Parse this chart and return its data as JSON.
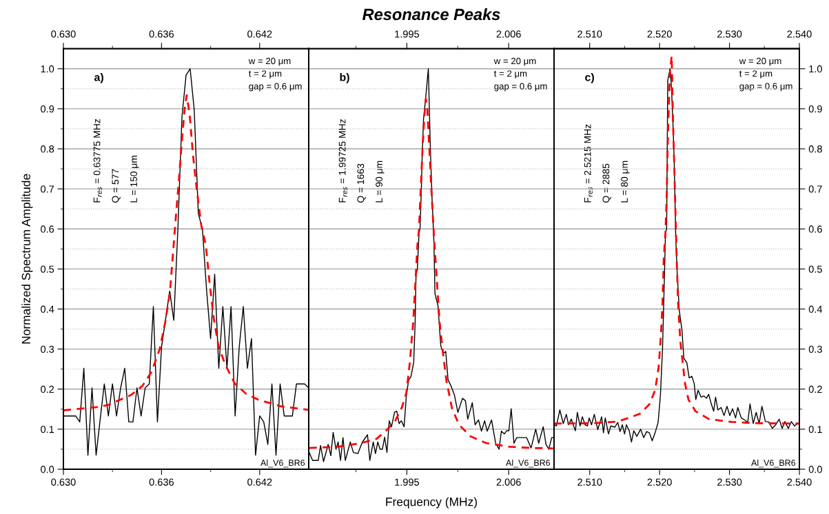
{
  "chart_data": [
    {
      "type": "line",
      "ylabel": "Normalized Spectrum Amplitude",
      "xlim": [
        0.63,
        0.645
      ],
      "xticks": [
        {
          "value": 0.63,
          "label": "0.630"
        },
        {
          "value": 0.633,
          "label": null
        },
        0.636,
        {
          "value": 0.639,
          "label": null
        },
        0.642
      ],
      "x2lim": [
        0.63,
        0.645
      ],
      "x2ticks": [
        {
          "value": 0.63,
          "label": "0.630"
        },
        {
          "value": 0.633,
          "label": null
        },
        0.636,
        {
          "value": 0.639,
          "label": null
        },
        0.642
      ],
      "ylim": [
        0,
        1.05
      ],
      "yticks": [
        {
          "value": 0,
          "label": "0.0"
        },
        {
          "value": 0.05,
          "label": null
        },
        0.1,
        {
          "value": 0.15,
          "label": null
        },
        0.2,
        {
          "value": 0.25,
          "label": null
        },
        0.3,
        {
          "value": 0.35,
          "label": null
        },
        0.4,
        {
          "value": 0.45,
          "label": null
        },
        0.5,
        {
          "value": 0.55,
          "label": null
        },
        0.6,
        {
          "value": 0.65,
          "label": null
        },
        0.7,
        {
          "value": 0.75,
          "label": null
        },
        0.8,
        {
          "value": 0.85,
          "label": null
        },
        0.9,
        {
          "value": 0.95,
          "label": null
        },
        {
          "value": 1,
          "label": "1.0"
        }
      ],
      "grid": "y",
      "annotations": [
        "a)",
        "F$_{res}$ = 0.63775 MHz",
        "Q = 577",
        "L = 150 μm",
        "w = 20 μm",
        "t = 2 μm",
        "gap = 0.6 μm",
        "Al_V6_BR6"
      ],
      "series": [
        {
          "color": "#000000",
          "line_style": "solid",
          "x": [
            0.63,
            0.63025,
            0.6305,
            0.63075,
            0.631,
            0.63125,
            0.6315,
            0.63175,
            0.632,
            0.63225,
            0.6325,
            0.63275,
            0.633,
            0.63325,
            0.6335,
            0.63375,
            0.634,
            0.63425,
            0.6345,
            0.63475,
            0.635,
            0.63525,
            0.6355,
            0.63575,
            0.636,
            0.63625,
            0.6365,
            0.63675,
            0.637,
            0.63725,
            0.6375,
            0.63775,
            0.638,
            0.63825,
            0.6385,
            0.63875,
            0.639,
            0.63925,
            0.6395,
            0.63975,
            0.64,
            0.64025,
            0.6405,
            0.64075,
            0.641,
            0.64125,
            0.6415,
            0.64175,
            0.642,
            0.64225,
            0.6425,
            0.64275,
            0.643,
            0.64325,
            0.6435,
            0.64375,
            0.644,
            0.64425,
            0.6445,
            0.64475,
            0.645
          ],
          "values": [
            0.133,
            0.133,
            0.133,
            0.133,
            0.118,
            0.252,
            0.035,
            0.203,
            0.035,
            0.125,
            0.213,
            0.133,
            0.213,
            0.133,
            0.203,
            0.252,
            0.118,
            0.118,
            0.203,
            0.133,
            0.203,
            0.213,
            0.406,
            0.118,
            0.305,
            0.375,
            0.445,
            0.372,
            0.6,
            0.88,
            0.984,
            1.0,
            0.897,
            0.638,
            0.6,
            0.45,
            0.326,
            0.487,
            0.252,
            0.406,
            0.252,
            0.406,
            0.133,
            0.305,
            0.406,
            0.252,
            0.326,
            0.035,
            0.133,
            0.118,
            0.062,
            0.213,
            0.035,
            0.213,
            0.133,
            0.133,
            0.133,
            0.213,
            0.213,
            0.213,
            0.203
          ]
        },
        {
          "color": "#ff0000",
          "line_style": "dashed",
          "x": [
            0.63,
            0.632,
            0.63271,
            0.63412,
            0.63483,
            0.63539,
            0.63589,
            0.63624,
            0.63652,
            0.63674,
            0.63688,
            0.63709,
            0.63726,
            0.63741,
            0.63754,
            0.63772,
            0.63793,
            0.63815,
            0.63843,
            0.63871,
            0.63892,
            0.6392,
            0.63949,
            0.63991,
            0.64048,
            0.64118,
            0.64189,
            0.6433,
            0.645
          ],
          "values": [
            0.147,
            0.155,
            0.16,
            0.185,
            0.208,
            0.243,
            0.3,
            0.37,
            0.444,
            0.559,
            0.632,
            0.736,
            0.828,
            0.897,
            0.934,
            0.885,
            0.782,
            0.7,
            0.609,
            0.559,
            0.472,
            0.375,
            0.306,
            0.26,
            0.214,
            0.188,
            0.174,
            0.157,
            0.148
          ]
        }
      ]
    },
    {
      "type": "line",
      "title": "Resonance Peaks",
      "xlabel": "Frequency (MHz)",
      "xlim": [
        1.9844,
        2.0109
      ],
      "xticks": [
        {
          "value": 1.9895,
          "label": null
        },
        1.995,
        {
          "value": 2.0005,
          "label": null
        },
        2.006
      ],
      "x2lim": [
        1.9844,
        2.0109
      ],
      "x2ticks": [
        {
          "value": 1.9895,
          "label": null
        },
        1.995,
        {
          "value": 2.0005,
          "label": null
        },
        2.006
      ],
      "ylim": [
        0,
        1.05
      ],
      "yticks": [
        0,
        {
          "value": 0.05,
          "label": null
        },
        0.1,
        {
          "value": 0.15,
          "label": null
        },
        0.2,
        {
          "value": 0.25,
          "label": null
        },
        0.3,
        {
          "value": 0.35,
          "label": null
        },
        0.4,
        {
          "value": 0.45,
          "label": null
        },
        0.5,
        {
          "value": 0.55,
          "label": null
        },
        0.6,
        {
          "value": 0.65,
          "label": null
        },
        0.7,
        {
          "value": 0.75,
          "label": null
        },
        0.8,
        {
          "value": 0.85,
          "label": null
        },
        0.9,
        {
          "value": 0.95,
          "label": null
        },
        1
      ],
      "tick_labels": "x",
      "grid": "y",
      "annotations": [
        "b)",
        "F$_{res}$ = 1.99725 MHz",
        "Q = 1663",
        "L = 90 μm",
        "w = 20 μm",
        "t = 2 μm",
        "gap = 0.6 μm",
        "Al_V6_BR6"
      ],
      "series": [
        {
          "color": "#000000",
          "line_style": "solid",
          "x": [
            1.98445,
            1.98482,
            1.98543,
            1.98568,
            1.986,
            1.9865,
            1.98679,
            1.98704,
            1.98734,
            1.98758,
            1.98783,
            1.9881,
            1.98835,
            1.98889,
            1.98922,
            1.98971,
            1.9902,
            1.99075,
            1.991,
            1.99137,
            1.99161,
            1.99186,
            1.99211,
            1.99236,
            1.9926,
            1.99285,
            1.9931,
            1.99334,
            1.99367,
            1.99391,
            1.99416,
            1.99441,
            1.9947,
            1.99495,
            1.9952,
            1.99544,
            1.99574,
            1.99589,
            1.99599,
            1.99614,
            1.99631,
            1.99643,
            1.99656,
            1.99668,
            1.9968,
            1.99698,
            1.99732,
            1.99755,
            1.99772,
            1.99792,
            1.99804,
            1.99836,
            1.99866,
            1.99891,
            1.9992,
            1.99945,
            1.99977,
            2.00014,
            2.00051,
            2.00101,
            2.00133,
            2.00158,
            2.00207,
            2.00237,
            2.00274,
            2.00306,
            2.0034,
            2.00368,
            2.00415,
            2.00459,
            2.00496,
            2.00521,
            2.00553,
            2.00578,
            2.00602,
            2.00627,
            2.00657,
            2.00687,
            2.00793,
            2.00842,
            2.00892,
            2.00924,
            2.00973,
            2.01003,
            2.01033,
            2.01065,
            2.01082
          ],
          "values": [
            0.042,
            0.022,
            0.022,
            0.059,
            0.019,
            0.062,
            0.034,
            0.092,
            0.05,
            0.068,
            0.022,
            0.079,
            0.022,
            0.068,
            0.042,
            0.039,
            0.068,
            0.086,
            0.022,
            0.068,
            0.039,
            0.068,
            0.05,
            0.05,
            0.08,
            0.042,
            0.121,
            0.106,
            0.142,
            0.145,
            0.114,
            0.121,
            0.106,
            0.185,
            0.223,
            0.231,
            0.266,
            0.363,
            0.484,
            0.501,
            0.587,
            0.603,
            0.695,
            0.799,
            0.874,
            0.914,
            1.0,
            0.793,
            0.678,
            0.569,
            0.438,
            0.409,
            0.309,
            0.289,
            0.294,
            0.223,
            0.208,
            0.185,
            0.142,
            0.177,
            0.171,
            0.125,
            0.166,
            0.111,
            0.123,
            0.095,
            0.121,
            0.095,
            0.123,
            0.065,
            0.05,
            0.095,
            0.088,
            0.096,
            0.096,
            0.151,
            0.065,
            0.079,
            0.079,
            0.053,
            0.1,
            0.065,
            0.106,
            0.062,
            0.05,
            0.079,
            0.079
          ]
        },
        {
          "color": "#ff0000",
          "line_style": "dashed",
          "x": [
            1.98445,
            1.98753,
            1.99001,
            1.99174,
            1.99273,
            1.99371,
            1.99446,
            1.99495,
            1.99532,
            1.99569,
            1.99594,
            1.99614,
            1.99631,
            1.99648,
            1.99668,
            1.99688,
            1.99705,
            1.99722,
            1.99742,
            1.99767,
            1.99792,
            1.99829,
            1.99853,
            1.99891,
            1.99928,
            1.99989,
            2.00064,
            2.00187,
            2.0036,
            2.00607,
            2.00855,
            2.0108
          ],
          "values": [
            0.053,
            0.056,
            0.065,
            0.076,
            0.096,
            0.119,
            0.154,
            0.191,
            0.266,
            0.369,
            0.472,
            0.559,
            0.598,
            0.69,
            0.793,
            0.879,
            0.925,
            0.897,
            0.805,
            0.69,
            0.586,
            0.455,
            0.369,
            0.289,
            0.22,
            0.151,
            0.111,
            0.082,
            0.065,
            0.056,
            0.053,
            0.052
          ]
        }
      ]
    },
    {
      "type": "line",
      "xlim": [
        2.5049,
        2.54
      ],
      "xticks": [
        {
          "value": 2.51,
          "label": "2.510"
        },
        {
          "value": 2.515,
          "label": null
        },
        {
          "value": 2.52,
          "label": "2.520"
        },
        {
          "value": 2.525,
          "label": null
        },
        {
          "value": 2.53,
          "label": "2.530"
        },
        {
          "value": 2.535,
          "label": null
        },
        {
          "value": 2.54,
          "label": "2.540"
        }
      ],
      "x2lim": [
        2.5049,
        2.54
      ],
      "x2ticks": [
        {
          "value": 2.51,
          "label": "2.510"
        },
        {
          "value": 2.515,
          "label": null
        },
        {
          "value": 2.52,
          "label": "2.520"
        },
        {
          "value": 2.525,
          "label": null
        },
        {
          "value": 2.53,
          "label": "2.530"
        },
        {
          "value": 2.535,
          "label": null
        },
        {
          "value": 2.54,
          "label": "2.540"
        }
      ],
      "y2lim": [
        0,
        1.05
      ],
      "y2ticks": [
        {
          "value": 0,
          "label": "0.0"
        },
        {
          "value": 0.05,
          "label": null
        },
        0.1,
        {
          "value": 0.15,
          "label": null
        },
        0.2,
        {
          "value": 0.25,
          "label": null
        },
        0.3,
        {
          "value": 0.35,
          "label": null
        },
        0.4,
        {
          "value": 0.45,
          "label": null
        },
        0.5,
        {
          "value": 0.55,
          "label": null
        },
        0.6,
        {
          "value": 0.65,
          "label": null
        },
        0.7,
        {
          "value": 0.75,
          "label": null
        },
        0.8,
        {
          "value": 0.85,
          "label": null
        },
        0.9,
        {
          "value": 0.95,
          "label": null
        },
        {
          "value": 1,
          "label": "1.0"
        }
      ],
      "grid": "y",
      "annotations": [
        "c)",
        "F$_{res}$ = 2.5215 MHz",
        "Q = 2885",
        "L = 80 μm",
        "w = 20 μm",
        "t = 2 μm",
        "gap = 0.6 μm",
        "Al_V6_BR6"
      ],
      "series": [
        {
          "axis": "y2",
          "color": "#000000",
          "line_style": "solid",
          "x": [
            2.50491,
            2.50524,
            2.50573,
            2.50622,
            2.50665,
            2.50698,
            2.50737,
            2.5077,
            2.50796,
            2.50823,
            2.50862,
            2.50895,
            2.50934,
            2.50967,
            2.50993,
            2.51026,
            2.51066,
            2.51115,
            2.51171,
            2.51197,
            2.51223,
            2.51269,
            2.51302,
            2.51361,
            2.51401,
            2.51434,
            2.51467,
            2.51499,
            2.51526,
            2.51565,
            2.51598,
            2.51631,
            2.51674,
            2.51729,
            2.51772,
            2.51815,
            2.51854,
            2.51894,
            2.51936,
            2.51979,
            2.52012,
            2.52042,
            2.52068,
            2.52084,
            2.52101,
            2.52117,
            2.5215,
            2.5217,
            2.52193,
            2.52209,
            2.52232,
            2.52249,
            2.52281,
            2.52321,
            2.52347,
            2.5239,
            2.52423,
            2.52462,
            2.52495,
            2.52518,
            2.52551,
            2.52594,
            2.52636,
            2.52669,
            2.52702,
            2.52742,
            2.52774,
            2.52801,
            2.52834,
            2.5288,
            2.52922,
            2.52965,
            2.53004,
            2.53044,
            2.53087,
            2.53119,
            2.53169,
            2.53218,
            2.53261,
            2.53294,
            2.5334,
            2.53382,
            2.53425,
            2.53464,
            2.53514,
            2.53563,
            2.53612,
            2.53662,
            2.53711,
            2.53754,
            2.53793,
            2.53842,
            2.53885,
            2.53931,
            2.53974,
            2.54
          ],
          "values": [
            0.111,
            0.108,
            0.148,
            0.114,
            0.137,
            0.111,
            0.125,
            0.108,
            0.096,
            0.142,
            0.108,
            0.131,
            0.111,
            0.108,
            0.128,
            0.111,
            0.137,
            0.099,
            0.131,
            0.091,
            0.128,
            0.088,
            0.108,
            0.105,
            0.117,
            0.094,
            0.111,
            0.088,
            0.111,
            0.096,
            0.068,
            0.096,
            0.082,
            0.1,
            0.079,
            0.094,
            0.091,
            0.071,
            0.091,
            0.117,
            0.185,
            0.3,
            0.472,
            0.587,
            0.603,
            0.971,
            1.0,
            0.954,
            0.856,
            0.77,
            0.575,
            0.501,
            0.398,
            0.346,
            0.277,
            0.266,
            0.228,
            0.232,
            0.214,
            0.174,
            0.197,
            0.18,
            0.183,
            0.177,
            0.187,
            0.162,
            0.145,
            0.18,
            0.148,
            0.154,
            0.134,
            0.157,
            0.134,
            0.151,
            0.128,
            0.154,
            0.128,
            0.123,
            0.117,
            0.163,
            0.114,
            0.142,
            0.114,
            0.157,
            0.119,
            0.118,
            0.102,
            0.111,
            0.125,
            0.102,
            0.119,
            0.102,
            0.119,
            0.108,
            0.114,
            0.114
          ]
        },
        {
          "axis": "y2",
          "color": "#ff0000",
          "line_style": "dashed",
          "x": [
            2.50491,
            2.51066,
            2.51394,
            2.51559,
            2.51723,
            2.51854,
            2.51936,
            2.51986,
            2.52019,
            2.52042,
            2.52061,
            2.52084,
            2.52101,
            2.52117,
            2.52134,
            2.5215,
            2.52173,
            2.52183,
            2.52193,
            2.52209,
            2.52226,
            2.52249,
            2.52265,
            2.52298,
            2.52331,
            2.52364,
            2.52413,
            2.52512,
            2.52709,
            2.53037,
            2.53366,
            2.54
          ],
          "values": [
            0.114,
            0.115,
            0.119,
            0.128,
            0.139,
            0.162,
            0.197,
            0.254,
            0.335,
            0.415,
            0.53,
            0.592,
            0.678,
            0.816,
            0.92,
            0.994,
            1.032,
            0.948,
            0.862,
            0.764,
            0.649,
            0.501,
            0.415,
            0.317,
            0.266,
            0.214,
            0.174,
            0.145,
            0.125,
            0.118,
            0.115,
            0.114
          ]
        }
      ]
    }
  ]
}
